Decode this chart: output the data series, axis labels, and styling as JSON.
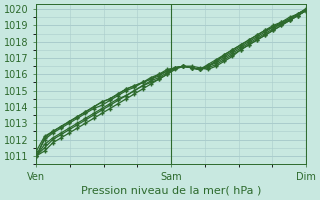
{
  "title": "",
  "xlabel": "Pression niveau de la mer( hPa )",
  "ylabel": "",
  "bg_color": "#c8e8e0",
  "grid_color": "#aacccc",
  "line_color": "#2d6a2d",
  "marker": "+",
  "ylim_min": 1010.5,
  "ylim_max": 1020.3,
  "yticks": [
    1011,
    1012,
    1013,
    1014,
    1015,
    1016,
    1017,
    1018,
    1019,
    1020
  ],
  "xtick_labels": [
    "Ven",
    "Sam",
    "Dim"
  ],
  "xtick_pos": [
    0.0,
    0.5,
    1.0
  ],
  "vlines": [
    0.0,
    0.5,
    1.0
  ],
  "series": [
    [
      1011.0,
      1011.3,
      1011.8,
      1012.1,
      1012.4,
      1012.7,
      1013.0,
      1013.3,
      1013.6,
      1013.9,
      1014.2,
      1014.5,
      1014.8,
      1015.1,
      1015.4,
      1015.7,
      1016.0,
      1016.4,
      1016.5,
      1016.5,
      1016.4,
      1016.3,
      1016.5,
      1016.8,
      1017.1,
      1017.5,
      1017.8,
      1018.1,
      1018.4,
      1018.7,
      1019.0,
      1019.3,
      1019.6,
      1019.9
    ],
    [
      1011.0,
      1011.5,
      1012.0,
      1012.3,
      1012.6,
      1012.9,
      1013.2,
      1013.5,
      1013.8,
      1014.1,
      1014.4,
      1014.7,
      1015.0,
      1015.3,
      1015.6,
      1015.8,
      1016.1,
      1016.4,
      1016.5,
      1016.4,
      1016.3,
      1016.4,
      1016.6,
      1016.9,
      1017.2,
      1017.5,
      1017.8,
      1018.1,
      1018.4,
      1018.7,
      1019.0,
      1019.3,
      1019.6,
      1019.9
    ],
    [
      1011.0,
      1011.7,
      1012.1,
      1012.4,
      1012.7,
      1013.0,
      1013.3,
      1013.6,
      1013.9,
      1014.2,
      1014.5,
      1014.7,
      1015.0,
      1015.3,
      1015.5,
      1015.7,
      1016.0,
      1016.3,
      1016.5,
      1016.4,
      1016.3,
      1016.5,
      1016.7,
      1017.0,
      1017.3,
      1017.6,
      1017.9,
      1018.2,
      1018.5,
      1018.8,
      1019.1,
      1019.3,
      1019.6,
      1019.9
    ],
    [
      1011.0,
      1012.0,
      1012.4,
      1012.7,
      1013.0,
      1013.3,
      1013.6,
      1013.9,
      1014.1,
      1014.4,
      1014.7,
      1015.0,
      1015.2,
      1015.5,
      1015.7,
      1015.9,
      1016.2,
      1016.4,
      1016.5,
      1016.4,
      1016.3,
      1016.5,
      1016.8,
      1017.1,
      1017.4,
      1017.7,
      1018.0,
      1018.3,
      1018.6,
      1018.9,
      1019.1,
      1019.4,
      1019.7,
      1020.0
    ],
    [
      1011.3,
      1012.2,
      1012.5,
      1012.8,
      1013.1,
      1013.4,
      1013.7,
      1014.0,
      1014.3,
      1014.5,
      1014.8,
      1015.1,
      1015.3,
      1015.5,
      1015.7,
      1016.0,
      1016.2,
      1016.4,
      1016.5,
      1016.4,
      1016.3,
      1016.5,
      1016.8,
      1017.2,
      1017.5,
      1017.8,
      1018.1,
      1018.4,
      1018.7,
      1018.9,
      1019.2,
      1019.4,
      1019.7,
      1020.0
    ],
    [
      1011.0,
      1012.1,
      1012.5,
      1012.8,
      1013.1,
      1013.4,
      1013.7,
      1014.0,
      1014.3,
      1014.5,
      1014.8,
      1015.1,
      1015.3,
      1015.5,
      1015.8,
      1016.0,
      1016.3,
      1016.4,
      1016.5,
      1016.4,
      1016.3,
      1016.6,
      1016.9,
      1017.2,
      1017.5,
      1017.8,
      1018.1,
      1018.4,
      1018.7,
      1019.0,
      1019.2,
      1019.5,
      1019.7,
      1020.0
    ]
  ],
  "xlabel_fontsize": 8,
  "tick_fontsize": 7,
  "linewidth": 0.9
}
